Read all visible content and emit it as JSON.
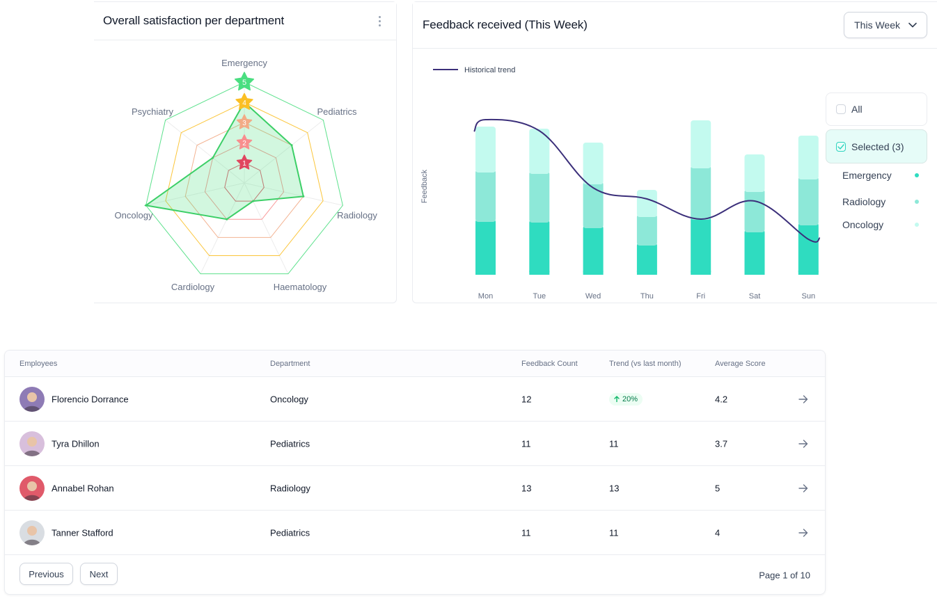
{
  "radar_card": {
    "title": "Overall satisfaction per department",
    "menu_icon": "more-vertical-icon"
  },
  "feedback_card": {
    "title": "Feedback received (This Week)",
    "period_dropdown": {
      "value": "This Week",
      "icon": "chevron-down-icon"
    },
    "filters": {
      "all_label": "All",
      "all_checked": false,
      "selected_label": "Selected (3)",
      "selected_checked": true
    },
    "series_legend": [
      {
        "label": "Emergency",
        "color": "#2fdcc0"
      },
      {
        "label": "Radiology",
        "color": "#8de8d8"
      },
      {
        "label": "Oncology",
        "color": "#c3faef"
      }
    ]
  },
  "chart_data": [
    {
      "type": "radar",
      "title": "Overall satisfaction per department",
      "axes": [
        "Emergency",
        "Pediatrics",
        "Radiology",
        "Haematology",
        "Cardiology",
        "Oncology",
        "Psychiatry"
      ],
      "values": [
        4,
        3,
        3,
        1,
        2,
        5,
        2
      ],
      "range": [
        0,
        5
      ],
      "levels": [
        {
          "label": "1",
          "color": "#e0475f"
        },
        {
          "label": "2",
          "color": "#f88e8e"
        },
        {
          "label": "3",
          "color": "#f2ab86"
        },
        {
          "label": "4",
          "color": "#fbbf24"
        },
        {
          "label": "5",
          "color": "#4ade80"
        }
      ],
      "fill_color": "#4ade80",
      "line_color": "#3ccf67"
    },
    {
      "type": "bar",
      "stacked": true,
      "title": "Feedback received (This Week)",
      "xlabel": "",
      "ylabel": "Feedback",
      "categories": [
        "Mon",
        "Tue",
        "Wed",
        "Thu",
        "Fri",
        "Sat",
        "Sun"
      ],
      "series": [
        {
          "name": "Emergency",
          "color": "#2fdcc0",
          "values": [
            8.0,
            7.9,
            7.1,
            4.6,
            8.3,
            6.5,
            7.5
          ]
        },
        {
          "name": "Radiology",
          "color": "#8de8d8",
          "values": [
            7.1,
            7.0,
            6.3,
            4.1,
            7.4,
            5.8,
            6.6
          ]
        },
        {
          "name": "Oncology",
          "color": "#c3faef",
          "values": [
            6.2,
            6.1,
            5.6,
            3.5,
            6.5,
            5.0,
            5.9
          ]
        }
      ],
      "line_series": {
        "name": "Historical trend",
        "color": "#3b2f7a",
        "values": [
          22.3,
          20.7,
          12.5,
          10.9,
          8.0,
          10.6,
          5.1
        ]
      },
      "ylim": [
        0,
        23
      ],
      "grid": false,
      "legend": "top-left"
    }
  ],
  "table": {
    "columns": [
      "Employees",
      "Department",
      "Feedback Count",
      "Trend (vs last month)",
      "Average Score"
    ],
    "rows": [
      {
        "name": "Florencio Dorrance",
        "department": "Oncology",
        "feedback_count": "12",
        "trend": "20%",
        "trend_badge": true,
        "average_score": "4.2",
        "avatar_bg": "#8e7bb5"
      },
      {
        "name": "Tyra Dhillon",
        "department": "Pediatrics",
        "feedback_count": "11",
        "trend": "11",
        "trend_badge": false,
        "average_score": "3.7",
        "avatar_bg": "#d8bfdc"
      },
      {
        "name": "Annabel Rohan",
        "department": "Radiology",
        "feedback_count": "13",
        "trend": "13",
        "trend_badge": false,
        "average_score": "5",
        "avatar_bg": "#e05a6a"
      },
      {
        "name": "Tanner Stafford",
        "department": "Pediatrics",
        "feedback_count": "11",
        "trend": "11",
        "trend_badge": false,
        "average_score": "4",
        "avatar_bg": "#d9dde2"
      }
    ],
    "pagination": {
      "previous_label": "Previous",
      "next_label": "Next",
      "page_info": "Page 1 of 10"
    }
  }
}
